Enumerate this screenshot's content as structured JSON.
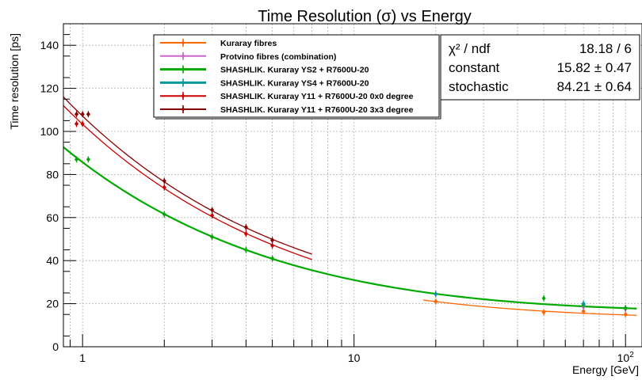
{
  "chart_data": {
    "type": "scatter",
    "title": "Time Resolution (σ) vs Energy",
    "xlabel": "Energy [GeV]",
    "ylabel": "Time resolution [ps]",
    "x_scale": "log",
    "xlim": [
      0.85,
      115
    ],
    "ylim": [
      0,
      150
    ],
    "grid": true,
    "legend_position": "top-center",
    "x_ticks": [
      {
        "value": 1,
        "label": "1"
      },
      {
        "value": 10,
        "label": "10"
      },
      {
        "value": 100,
        "label": "10",
        "sup": "2"
      }
    ],
    "y_ticks": [
      0,
      20,
      40,
      60,
      80,
      100,
      120,
      140
    ],
    "stats_box": {
      "rows": [
        {
          "name": "χ² / ndf",
          "value": "18.18 / 6"
        },
        {
          "name": "constant",
          "value": "15.82 ± 0.47"
        },
        {
          "name": "stochastic",
          "value": "84.21 ± 0.64"
        }
      ]
    },
    "series": [
      {
        "name": "Kuraray fibres",
        "color": "#ff6600",
        "x": [
          20,
          50,
          70,
          100
        ],
        "y": [
          21,
          16,
          16.5,
          15
        ],
        "fit": {
          "xmin": 18,
          "xmax": 110,
          "y_at_xmin": 21.7,
          "y_at_xmax": 14.6
        }
      },
      {
        "name": "Protvino fibres (combination)",
        "color": "#cc66cc",
        "x": [
          20,
          70,
          100
        ],
        "y": [
          24.5,
          18.5,
          17.5
        ],
        "fit": null
      },
      {
        "name": "SHASHLIK. Kuraray YS2 + R7600U-20",
        "color": "#00aa00",
        "x": [
          0.95,
          1.05,
          2,
          3,
          4,
          5,
          50,
          70,
          100
        ],
        "y": [
          87,
          87,
          61.5,
          51,
          45,
          41,
          22.5,
          19.5,
          18
        ],
        "fit": {
          "xmin": 0.85,
          "xmax": 110,
          "constant": 15.82,
          "stochastic": 84.21
        }
      },
      {
        "name": "SHASHLIK. Kuraray YS4 + R7600U-20",
        "color": "#009999",
        "x": [
          20,
          70
        ],
        "y": [
          24.5,
          20
        ],
        "fit": null
      },
      {
        "name": "SHASHLIK. Kuraray Y11 + R7600U-20 0x0 degree",
        "color": "#cc0000",
        "x": [
          0.95,
          1.0,
          2,
          3,
          4,
          5
        ],
        "y": [
          103.5,
          103.5,
          74,
          61,
          52.5,
          47
        ],
        "fit": {
          "xmin": 0.85,
          "xmax": 7,
          "y_at_xmin": 112,
          "y_at_xmax": 40.5
        }
      },
      {
        "name": "SHASHLIK. Kuraray Y11 + R7600U-20 3x3 degree",
        "color": "#880000",
        "x": [
          0.95,
          1.0,
          1.05,
          2,
          3,
          4,
          5
        ],
        "y": [
          108,
          108,
          108,
          77,
          63.5,
          55.5,
          49.5
        ],
        "fit": {
          "xmin": 0.85,
          "xmax": 7,
          "y_at_xmin": 116,
          "y_at_xmax": 43
        }
      }
    ]
  }
}
